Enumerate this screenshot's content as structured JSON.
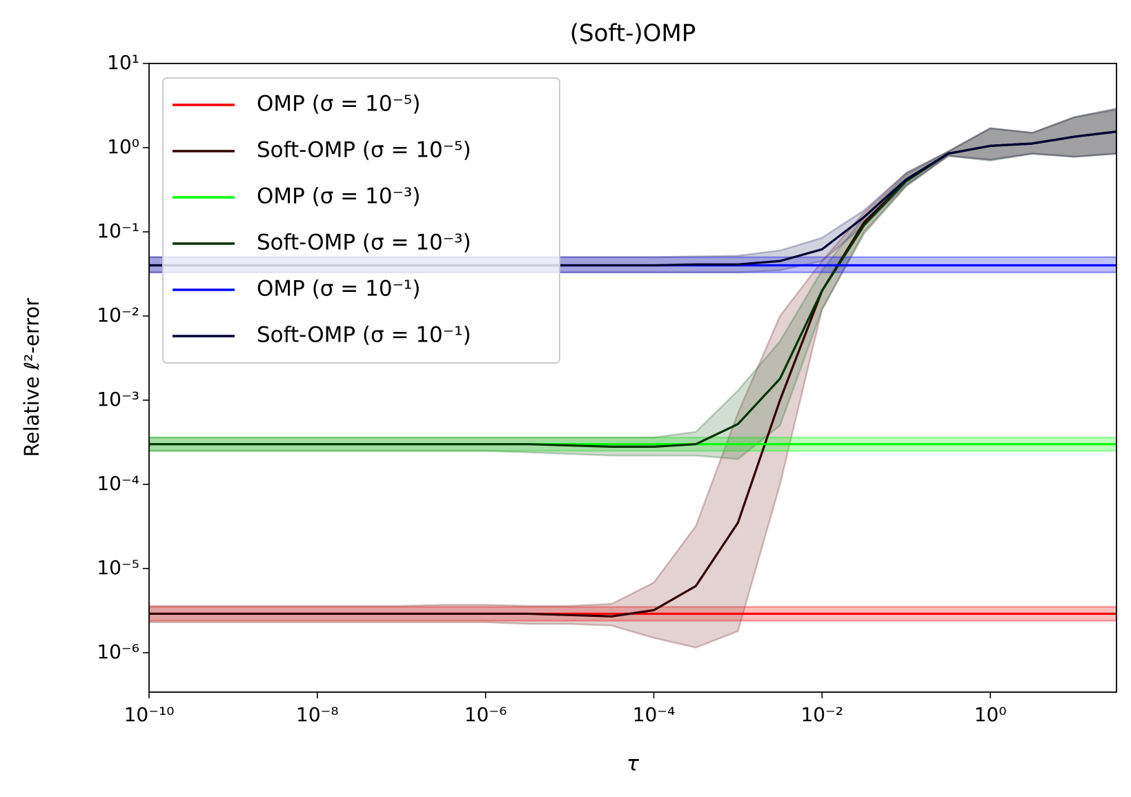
{
  "chart_data": {
    "type": "line",
    "title": "(Soft-)OMP",
    "xlabel": "τ",
    "ylabel": "Relative ℓ²-error",
    "xscale": "log",
    "yscale": "log",
    "legend": "upper left",
    "xlim": [
      1e-10,
      31.62
    ],
    "ylim": [
      3.4e-07,
      10
    ],
    "xticks": [
      {
        "value": 1e-10,
        "label": "10⁻¹⁰"
      },
      {
        "value": 1e-08,
        "label": "10⁻⁸"
      },
      {
        "value": 1e-06,
        "label": "10⁻⁶"
      },
      {
        "value": 0.0001,
        "label": "10⁻⁴"
      },
      {
        "value": 0.01,
        "label": "10⁻²"
      },
      {
        "value": 1,
        "label": "10⁰"
      }
    ],
    "yticks": [
      {
        "value": 1e-06,
        "label": "10⁻⁶"
      },
      {
        "value": 1e-05,
        "label": "10⁻⁵"
      },
      {
        "value": 0.0001,
        "label": "10⁻⁴"
      },
      {
        "value": 0.001,
        "label": "10⁻³"
      },
      {
        "value": 0.01,
        "label": "10⁻²"
      },
      {
        "value": 0.1,
        "label": "10⁻¹"
      },
      {
        "value": 1,
        "label": "10⁰"
      },
      {
        "value": 10,
        "label": "10¹"
      }
    ],
    "x": [
      1e-10,
      3.162e-10,
      1e-09,
      3.162e-09,
      1e-08,
      3.162e-08,
      1e-07,
      3.162e-07,
      1e-06,
      3.162e-06,
      1e-05,
      3.162e-05,
      0.0001,
      0.0003162,
      0.001,
      0.003162,
      0.01,
      0.03162,
      0.1,
      0.3162,
      1,
      3.162,
      10,
      31.62
    ],
    "series": [
      {
        "name": "OMP (σ = 10⁻⁵)",
        "color": "#ff0000",
        "band_color": "#ff0000",
        "values": [
          2.9e-06,
          2.9e-06,
          2.9e-06,
          2.9e-06,
          2.9e-06,
          2.9e-06,
          2.9e-06,
          2.9e-06,
          2.9e-06,
          2.9e-06,
          2.9e-06,
          2.9e-06,
          2.9e-06,
          2.9e-06,
          2.9e-06,
          2.9e-06,
          2.9e-06,
          2.9e-06,
          2.9e-06,
          2.9e-06,
          2.9e-06,
          2.9e-06,
          2.9e-06,
          2.9e-06
        ],
        "lower": [
          2.4e-06,
          2.4e-06,
          2.4e-06,
          2.4e-06,
          2.4e-06,
          2.4e-06,
          2.4e-06,
          2.4e-06,
          2.4e-06,
          2.4e-06,
          2.4e-06,
          2.4e-06,
          2.4e-06,
          2.4e-06,
          2.4e-06,
          2.4e-06,
          2.4e-06,
          2.4e-06,
          2.4e-06,
          2.4e-06,
          2.4e-06,
          2.4e-06,
          2.4e-06,
          2.4e-06
        ],
        "upper": [
          3.5e-06,
          3.5e-06,
          3.5e-06,
          3.5e-06,
          3.5e-06,
          3.5e-06,
          3.5e-06,
          3.5e-06,
          3.5e-06,
          3.5e-06,
          3.5e-06,
          3.5e-06,
          3.5e-06,
          3.5e-06,
          3.5e-06,
          3.5e-06,
          3.5e-06,
          3.5e-06,
          3.5e-06,
          3.5e-06,
          3.5e-06,
          3.5e-06,
          3.5e-06,
          3.5e-06
        ]
      },
      {
        "name": "Soft-OMP (σ = 10⁻⁵)",
        "color": "#330000",
        "band_color": "#8b4a4a",
        "values": [
          2.9e-06,
          2.9e-06,
          2.9e-06,
          2.9e-06,
          2.9e-06,
          2.9e-06,
          2.9e-06,
          2.9e-06,
          2.9e-06,
          2.9e-06,
          2.8e-06,
          2.7e-06,
          3.2e-06,
          6.2e-06,
          3.5e-05,
          0.001,
          0.02,
          0.13,
          0.4,
          0.85,
          1.05,
          1.12,
          1.35,
          1.55
        ],
        "lower": [
          2.3e-06,
          2.3e-06,
          2.3e-06,
          2.3e-06,
          2.3e-06,
          2.3e-06,
          2.3e-06,
          2.3e-06,
          2.3e-06,
          2.2e-06,
          2.2e-06,
          2.1e-06,
          1.5e-06,
          1.15e-06,
          1.8e-06,
          0.0001,
          0.012,
          0.1,
          0.35,
          0.8,
          0.72,
          0.85,
          0.78,
          0.85
        ],
        "upper": [
          3.6e-06,
          3.6e-06,
          3.6e-06,
          3.6e-06,
          3.6e-06,
          3.6e-06,
          3.6e-06,
          3.7e-06,
          3.7e-06,
          3.6e-06,
          3.6e-06,
          3.8e-06,
          6.8e-06,
          3.2e-05,
          0.0007,
          0.01,
          0.045,
          0.17,
          0.5,
          0.9,
          1.7,
          1.5,
          2.3,
          2.8
        ]
      },
      {
        "name": "OMP (σ = 10⁻³)",
        "color": "#00ff00",
        "band_color": "#00ff00",
        "values": [
          0.0003,
          0.0003,
          0.0003,
          0.0003,
          0.0003,
          0.0003,
          0.0003,
          0.0003,
          0.0003,
          0.0003,
          0.0003,
          0.0003,
          0.0003,
          0.0003,
          0.0003,
          0.0003,
          0.0003,
          0.0003,
          0.0003,
          0.0003,
          0.0003,
          0.0003,
          0.0003,
          0.0003
        ],
        "lower": [
          0.00025,
          0.00025,
          0.00025,
          0.00025,
          0.00025,
          0.00025,
          0.00025,
          0.00025,
          0.00025,
          0.00025,
          0.00025,
          0.00025,
          0.00025,
          0.00025,
          0.00025,
          0.00025,
          0.00025,
          0.00025,
          0.00025,
          0.00025,
          0.00025,
          0.00025,
          0.00025,
          0.00025
        ],
        "upper": [
          0.00036,
          0.00036,
          0.00036,
          0.00036,
          0.00036,
          0.00036,
          0.00036,
          0.00036,
          0.00036,
          0.00036,
          0.00036,
          0.00036,
          0.00036,
          0.00036,
          0.00036,
          0.00036,
          0.00036,
          0.00036,
          0.00036,
          0.00036,
          0.00036,
          0.00036,
          0.00036,
          0.00036
        ]
      },
      {
        "name": "Soft-OMP (σ = 10⁻³)",
        "color": "#003300",
        "band_color": "#4a7a4a",
        "values": [
          0.0003,
          0.0003,
          0.0003,
          0.0003,
          0.0003,
          0.0003,
          0.0003,
          0.0003,
          0.0003,
          0.0003,
          0.00029,
          0.00028,
          0.00028,
          0.0003,
          0.00052,
          0.0018,
          0.02,
          0.12,
          0.4,
          0.85,
          1.05,
          1.12,
          1.35,
          1.55
        ],
        "lower": [
          0.00025,
          0.00025,
          0.00025,
          0.00025,
          0.00025,
          0.00025,
          0.00025,
          0.00025,
          0.00025,
          0.00024,
          0.00023,
          0.00022,
          0.00022,
          0.00022,
          0.0002,
          0.0005,
          0.012,
          0.095,
          0.35,
          0.8,
          0.7,
          0.85,
          0.78,
          0.85
        ],
        "upper": [
          0.00036,
          0.00036,
          0.00036,
          0.00036,
          0.00036,
          0.00036,
          0.00036,
          0.00036,
          0.00036,
          0.00036,
          0.00036,
          0.00036,
          0.00036,
          0.00042,
          0.0013,
          0.005,
          0.035,
          0.15,
          0.48,
          0.9,
          1.7,
          1.5,
          2.3,
          2.9
        ]
      },
      {
        "name": "OMP (σ = 10⁻¹)",
        "color": "#0000ff",
        "band_color": "#0000ff",
        "values": [
          0.04,
          0.04,
          0.04,
          0.04,
          0.04,
          0.04,
          0.04,
          0.04,
          0.04,
          0.04,
          0.04,
          0.04,
          0.04,
          0.04,
          0.04,
          0.04,
          0.04,
          0.04,
          0.04,
          0.04,
          0.04,
          0.04,
          0.04,
          0.04
        ],
        "lower": [
          0.033,
          0.033,
          0.033,
          0.033,
          0.033,
          0.033,
          0.033,
          0.033,
          0.033,
          0.033,
          0.033,
          0.033,
          0.033,
          0.033,
          0.033,
          0.033,
          0.033,
          0.033,
          0.033,
          0.033,
          0.033,
          0.033,
          0.033,
          0.033
        ],
        "upper": [
          0.05,
          0.05,
          0.05,
          0.05,
          0.05,
          0.05,
          0.05,
          0.05,
          0.05,
          0.05,
          0.05,
          0.05,
          0.05,
          0.05,
          0.05,
          0.05,
          0.05,
          0.05,
          0.05,
          0.05,
          0.05,
          0.05,
          0.05,
          0.05
        ]
      },
      {
        "name": "Soft-OMP (σ = 10⁻¹)",
        "color": "#000033",
        "band_color": "#4a4a7a",
        "values": [
          0.04,
          0.04,
          0.04,
          0.04,
          0.04,
          0.04,
          0.04,
          0.04,
          0.04,
          0.04,
          0.04,
          0.04,
          0.04,
          0.041,
          0.041,
          0.045,
          0.062,
          0.15,
          0.42,
          0.85,
          1.05,
          1.12,
          1.35,
          1.55
        ],
        "lower": [
          0.033,
          0.033,
          0.033,
          0.033,
          0.033,
          0.033,
          0.033,
          0.033,
          0.033,
          0.033,
          0.033,
          0.033,
          0.033,
          0.033,
          0.033,
          0.035,
          0.045,
          0.12,
          0.36,
          0.8,
          0.72,
          0.85,
          0.78,
          0.85
        ],
        "upper": [
          0.05,
          0.05,
          0.05,
          0.05,
          0.05,
          0.05,
          0.05,
          0.05,
          0.05,
          0.05,
          0.05,
          0.05,
          0.05,
          0.051,
          0.052,
          0.06,
          0.085,
          0.18,
          0.5,
          0.9,
          1.7,
          1.5,
          2.3,
          2.9
        ]
      }
    ]
  }
}
